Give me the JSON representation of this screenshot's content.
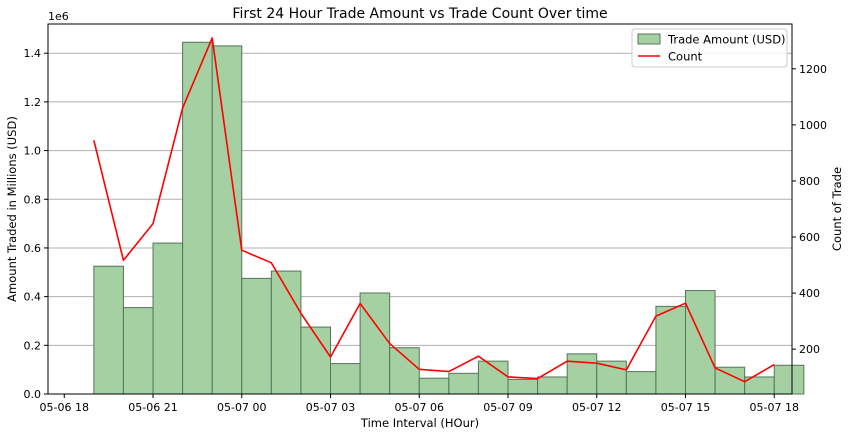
{
  "chart_data": {
    "type": "bar+line",
    "title": "First 24 Hour Trade Amount vs Trade Count Over time",
    "xlabel": "Time Interval (HOur)",
    "ylabel_left": "Amount Traded in Millions (USD)",
    "ylabel_right": "Count of Trade",
    "offset_label": "1e6",
    "x_ticks": [
      {
        "label": "05-06 18",
        "hour": 0
      },
      {
        "label": "05-06 21",
        "hour": 3
      },
      {
        "label": "05-07 00",
        "hour": 6
      },
      {
        "label": "05-07 03",
        "hour": 9
      },
      {
        "label": "05-07 06",
        "hour": 12
      },
      {
        "label": "05-07 09",
        "hour": 15
      },
      {
        "label": "05-07 12",
        "hour": 18
      },
      {
        "label": "05-07 15",
        "hour": 21
      },
      {
        "label": "05-07 18",
        "hour": 24
      }
    ],
    "xlim_hours": [
      -0.55,
      24.6
    ],
    "y_left_ticks": [
      "0.0",
      "0.2",
      "0.4",
      "0.6",
      "0.8",
      "1.0",
      "1.2",
      "1.4"
    ],
    "ylim_left": [
      0,
      1520000
    ],
    "y_right_ticks": [
      "200",
      "400",
      "600",
      "800",
      "1000",
      "1200"
    ],
    "ylim_right": [
      40,
      1360
    ],
    "grid": true,
    "legend": {
      "position": "top-right",
      "entries": [
        {
          "label": "Trade Amount (USD)",
          "kind": "bar"
        },
        {
          "label": "Count",
          "kind": "line"
        }
      ]
    },
    "colors": {
      "bar_fill": "#a5d0a2",
      "bar_edge": "#55745a",
      "line": "#ff0000",
      "grid": "#b0b0b0"
    },
    "series": [
      {
        "name": "Trade Amount (USD)",
        "kind": "bar",
        "axis": "left",
        "bin_width_hours": 1,
        "values": [
          525000,
          355000,
          620000,
          1445000,
          1430000,
          475000,
          505000,
          275000,
          125000,
          415000,
          190000,
          65000,
          85000,
          135000,
          60000,
          70000,
          165000,
          135000,
          92000,
          360000,
          425000,
          110000,
          70000,
          118000
        ]
      },
      {
        "name": "Count",
        "kind": "line",
        "axis": "right",
        "values": [
          945,
          517,
          648,
          1060,
          1310,
          553,
          508,
          328,
          172,
          363,
          220,
          128,
          120,
          175,
          101,
          95,
          157,
          150,
          126,
          318,
          364,
          133,
          84,
          145
        ]
      }
    ]
  }
}
